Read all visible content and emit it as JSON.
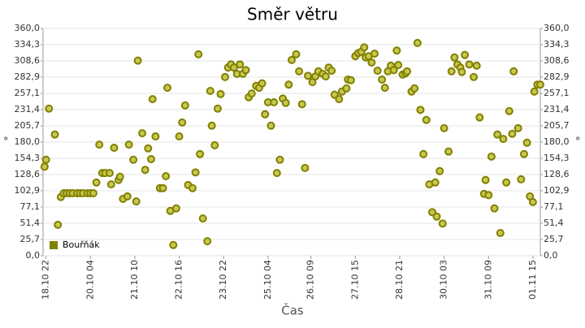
{
  "chart_data": {
    "type": "scatter",
    "title": "Směr větru",
    "x_label": "Čas",
    "y_label": "°",
    "y2_label": "°",
    "xlim": [
      "18.10 20",
      "01.11 20"
    ],
    "xticks": [
      "18.10 22",
      "20.10 04",
      "21.10 10",
      "22.10 16",
      "23.10 22",
      "25.10 04",
      "26.10 09",
      "27.10 15",
      "28.10 21",
      "30.10 03",
      "31.10 09",
      "01.11 15"
    ],
    "ylim": [
      0,
      360
    ],
    "yticks": [
      {
        "value": 0,
        "label": "0,0"
      },
      {
        "value": 25.7,
        "label": "25,7"
      },
      {
        "value": 51.4,
        "label": "51,4"
      },
      {
        "value": 77.1,
        "label": "77,1"
      },
      {
        "value": 102.9,
        "label": "102,9"
      },
      {
        "value": 128.6,
        "label": "128,6"
      },
      {
        "value": 154.3,
        "label": "154,3"
      },
      {
        "value": 180,
        "label": "180,0"
      },
      {
        "value": 205.7,
        "label": "205,7"
      },
      {
        "value": 231.4,
        "label": "231,4"
      },
      {
        "value": 257.1,
        "label": "257,1"
      },
      {
        "value": 282.9,
        "label": "282,9"
      },
      {
        "value": 308.6,
        "label": "308,6"
      },
      {
        "value": 334.3,
        "label": "334,3"
      },
      {
        "value": 360,
        "label": "360,0"
      }
    ],
    "y2lim": [
      0,
      360
    ],
    "y2ticks": [
      {
        "value": 0,
        "label": "0,0"
      },
      {
        "value": 25.7,
        "label": "25,7"
      },
      {
        "value": 51.4,
        "label": "51,4"
      },
      {
        "value": 77.1,
        "label": "77,1"
      },
      {
        "value": 102.9,
        "label": "102,9"
      },
      {
        "value": 128.6,
        "label": "128,6"
      },
      {
        "value": 154.3,
        "label": "154,3"
      },
      {
        "value": 180,
        "label": "180,0"
      },
      {
        "value": 205.7,
        "label": "205,7"
      },
      {
        "value": 231.4,
        "label": "231,4"
      },
      {
        "value": 257.1,
        "label": "257,1"
      },
      {
        "value": 282.9,
        "label": "282,9"
      },
      {
        "value": 308.6,
        "label": "308,6"
      },
      {
        "value": 334.3,
        "label": "334,3"
      },
      {
        "value": 360,
        "label": "360,0"
      }
    ],
    "grid": true,
    "legend": "bottom-left",
    "series": [
      {
        "name": "Bouřňák",
        "color": "#808000",
        "x": [
          "18.10 21",
          "18.10 22",
          "19.10 00",
          "19.10 04",
          "19.10 06",
          "19.10 08",
          "19.10 10",
          "19.10 12",
          "19.10 14",
          "19.10 16",
          "19.10 19",
          "19.10 21",
          "19.10 23",
          "20.10 02",
          "20.10 04",
          "20.10 06",
          "20.10 08",
          "20.10 10",
          "20.10 12",
          "20.10 14",
          "20.10 17",
          "20.10 18",
          "20.10 20",
          "20.10 23",
          "21.10 00",
          "21.10 02",
          "21.10 05",
          "21.10 06",
          "21.10 09",
          "21.10 11",
          "21.10 12",
          "21.10 15",
          "21.10 17",
          "21.10 19",
          "21.10 21",
          "21.10 22",
          "22.10 00",
          "22.10 03",
          "22.10 05",
          "22.10 07",
          "22.10 08",
          "22.10 10",
          "22.10 12",
          "22.10 14",
          "22.10 16",
          "22.10 18",
          "22.10 20",
          "22.10 22",
          "23.10 01",
          "23.10 03",
          "23.10 05",
          "23.10 06",
          "23.10 08",
          "23.10 11",
          "23.10 13",
          "23.10 14",
          "23.10 16",
          "23.10 18",
          "23.10 20",
          "23.10 23",
          "24.10 01",
          "24.10 03",
          "24.10 05",
          "24.10 07",
          "24.10 09",
          "24.10 11",
          "24.10 13",
          "24.10 15",
          "24.10 17",
          "24.10 20",
          "24.10 22",
          "25.10 00",
          "25.10 02",
          "25.10 04",
          "25.10 06",
          "25.10 08",
          "25.10 10",
          "25.10 12",
          "25.10 14",
          "25.10 16",
          "25.10 18",
          "25.10 20",
          "25.10 23",
          "26.10 01",
          "26.10 03",
          "26.10 05",
          "26.10 07",
          "26.10 10",
          "26.10 12",
          "26.10 14",
          "26.10 17",
          "26.10 19",
          "26.10 21",
          "26.10 23",
          "27.10 01",
          "27.10 04",
          "27.10 06",
          "27.10 09",
          "27.10 10",
          "27.10 12",
          "27.10 15",
          "27.10 17",
          "27.10 19",
          "27.10 21",
          "27.10 22",
          "28.10 00",
          "28.10 02",
          "28.10 04",
          "28.10 06",
          "28.10 09",
          "28.10 11",
          "28.10 13",
          "28.10 15",
          "28.10 17",
          "28.10 19",
          "28.10 20",
          "28.10 23",
          "29.10 01",
          "29.10 02",
          "29.10 05",
          "29.10 07",
          "29.10 09",
          "29.10 11",
          "29.10 13",
          "29.10 15",
          "29.10 17",
          "29.10 19",
          "29.10 21",
          "29.10 22",
          "30.10 00",
          "30.10 02",
          "30.10 03",
          "30.10 06",
          "30.10 08",
          "30.10 10",
          "30.10 12",
          "30.10 14",
          "30.10 15",
          "30.10 17",
          "30.10 20",
          "30.10 23",
          "31.10 01",
          "31.10 03",
          "31.10 06",
          "31.10 07",
          "31.10 09",
          "31.10 11",
          "31.10 13",
          "31.10 15",
          "31.10 17",
          "31.10 19",
          "31.10 21",
          "31.10 23",
          "01.11 01",
          "01.11 02",
          "01.11 05",
          "01.11 07",
          "01.11 09",
          "01.11 11",
          "01.11 13",
          "01.11 15",
          "01.11 16",
          "01.11 18",
          "01.11 20"
        ],
        "values": [
          141,
          152,
          233,
          192,
          49,
          93,
          99,
          99,
          99,
          99,
          99,
          99,
          99,
          99,
          99,
          99,
          116,
          176,
          131,
          131,
          131,
          113,
          171,
          120,
          125,
          90,
          94,
          176,
          152,
          86,
          309,
          194,
          136,
          170,
          153,
          248,
          189,
          107,
          107,
          126,
          266,
          71,
          17,
          75,
          189,
          211,
          238,
          112,
          107,
          132,
          319,
          161,
          59,
          23,
          261,
          206,
          175,
          233,
          256,
          283,
          298,
          303,
          298,
          288,
          303,
          288,
          294,
          251,
          257,
          269,
          266,
          273,
          224,
          243,
          206,
          243,
          131,
          152,
          249,
          242,
          271,
          310,
          319,
          292,
          240,
          139,
          285,
          275,
          284,
          292,
          288,
          284,
          298,
          293,
          255,
          248,
          260,
          265,
          279,
          278,
          316,
          321,
          323,
          330,
          314,
          316,
          306,
          320,
          293,
          279,
          266,
          292,
          301,
          294,
          325,
          302,
          287,
          289,
          292,
          260,
          265,
          337,
          231,
          161,
          215,
          113,
          69,
          116,
          62,
          134,
          51,
          202,
          165,
          292,
          314,
          303,
          298,
          291,
          318,
          303,
          283,
          301,
          219,
          98,
          120,
          96,
          157,
          75,
          192,
          36,
          185,
          116,
          229,
          193,
          292,
          202,
          121,
          161,
          179,
          94,
          85,
          260,
          271,
          271
        ]
      }
    ]
  }
}
